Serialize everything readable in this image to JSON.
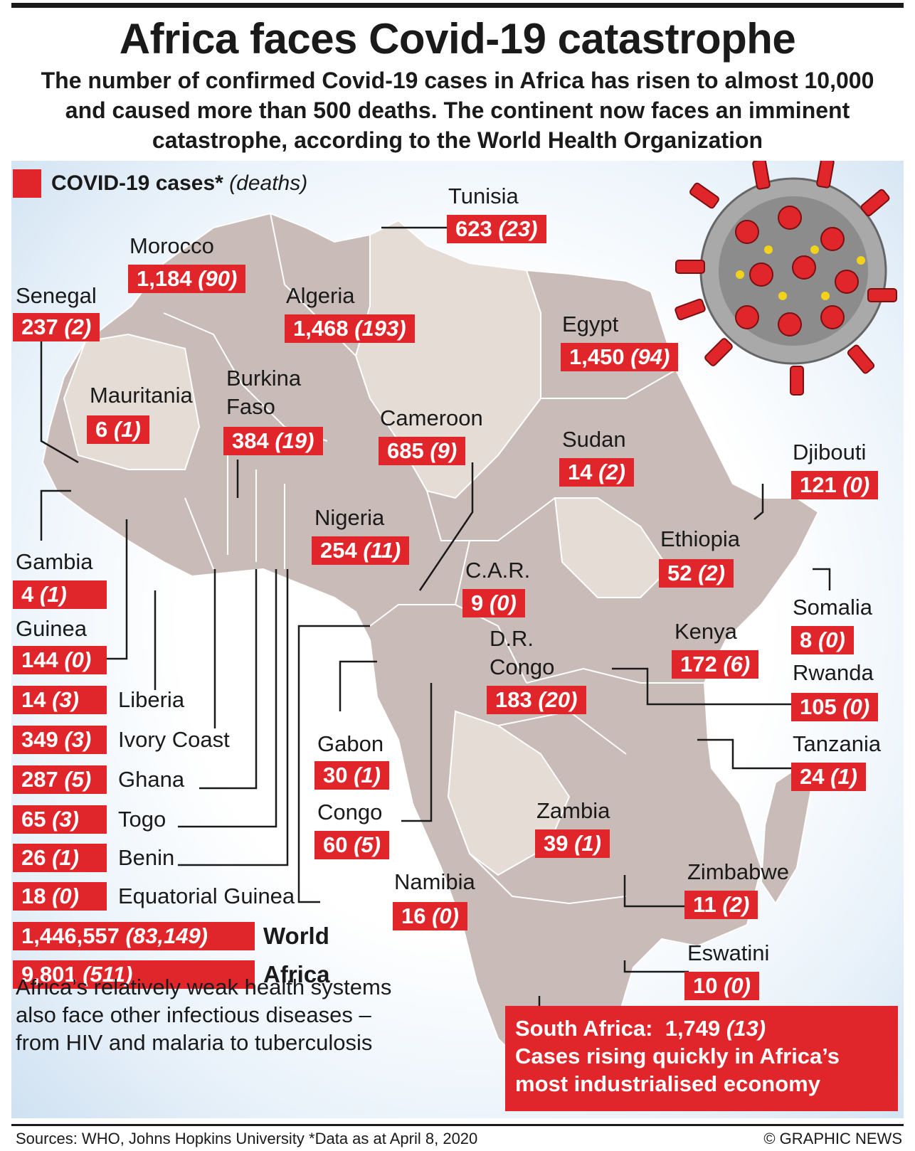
{
  "title": "Africa faces Covid-19 catastrophe",
  "subtitle": "The number of confirmed Covid-19 cases in Africa has risen to almost 10,000 and caused more than 500 deaths. The continent now faces an imminent catastrophe, according to the World Health Organization",
  "legend": {
    "cases_label": "COVID-19 cases*",
    "deaths_label": "(deaths)",
    "color": "#e0262b"
  },
  "countries": {
    "tunisia": {
      "name": "Tunisia",
      "cases": "623",
      "deaths": "(23)"
    },
    "morocco": {
      "name": "Morocco",
      "cases": "1,184",
      "deaths": "(90)"
    },
    "senegal": {
      "name": "Senegal",
      "cases": "237",
      "deaths": "(2)"
    },
    "algeria": {
      "name": "Algeria",
      "cases": "1,468",
      "deaths": "(193)"
    },
    "egypt": {
      "name": "Egypt",
      "cases": "1,450",
      "deaths": "(94)"
    },
    "mauritania": {
      "name": "Mauritania",
      "cases": "6",
      "deaths": "(1)"
    },
    "burkina": {
      "name_line1": "Burkina",
      "name_line2": "Faso",
      "cases": "384",
      "deaths": "(19)"
    },
    "cameroon": {
      "name": "Cameroon",
      "cases": "685",
      "deaths": "(9)"
    },
    "sudan": {
      "name": "Sudan",
      "cases": "14",
      "deaths": "(2)"
    },
    "djibouti": {
      "name": "Djibouti",
      "cases": "121",
      "deaths": "(0)"
    },
    "nigeria": {
      "name": "Nigeria",
      "cases": "254",
      "deaths": "(11)"
    },
    "ethiopia": {
      "name": "Ethiopia",
      "cases": "52",
      "deaths": "(2)"
    },
    "car": {
      "name": "C.A.R.",
      "cases": "9",
      "deaths": "(0)"
    },
    "somalia": {
      "name": "Somalia",
      "cases": "8",
      "deaths": "(0)"
    },
    "gambia": {
      "name": "Gambia",
      "cases": "4",
      "deaths": "(1)"
    },
    "guinea": {
      "name": "Guinea",
      "cases": "144",
      "deaths": "(0)"
    },
    "drc": {
      "name_line1": "D.R.",
      "name_line2": "Congo",
      "cases": "183",
      "deaths": "(20)"
    },
    "kenya": {
      "name": "Kenya",
      "cases": "172",
      "deaths": "(6)"
    },
    "rwanda": {
      "name": "Rwanda",
      "cases": "105",
      "deaths": "(0)"
    },
    "liberia": {
      "name": "Liberia",
      "cases": "14",
      "deaths": "(3)"
    },
    "ivory_coast": {
      "name": "Ivory Coast",
      "cases": "349",
      "deaths": "(3)"
    },
    "ghana": {
      "name": "Ghana",
      "cases": "287",
      "deaths": "(5)"
    },
    "togo": {
      "name": "Togo",
      "cases": "65",
      "deaths": "(3)"
    },
    "benin": {
      "name": "Benin",
      "cases": "26",
      "deaths": "(1)"
    },
    "eq_guinea": {
      "name": "Equatorial Guinea",
      "cases": "18",
      "deaths": "(0)"
    },
    "gabon": {
      "name": "Gabon",
      "cases": "30",
      "deaths": "(1)"
    },
    "congo": {
      "name": "Congo",
      "cases": "60",
      "deaths": "(5)"
    },
    "tanzania": {
      "name": "Tanzania",
      "cases": "24",
      "deaths": "(1)"
    },
    "zambia": {
      "name": "Zambia",
      "cases": "39",
      "deaths": "(1)"
    },
    "namibia": {
      "name": "Namibia",
      "cases": "16",
      "deaths": "(0)"
    },
    "zimbabwe": {
      "name": "Zimbabwe",
      "cases": "11",
      "deaths": "(2)"
    },
    "eswatini": {
      "name": "Eswatini",
      "cases": "10",
      "deaths": "(0)"
    }
  },
  "totals": {
    "world": {
      "label": "World",
      "cases": "1,446,557",
      "deaths": "(83,149)"
    },
    "africa": {
      "label": "Africa",
      "cases": "9,801",
      "deaths": "(511)"
    }
  },
  "note": "Africa’s relatively weak health systems also face other infectious diseases – from HIV and malaria to tuberculosis",
  "south_africa": {
    "label": "South Africa:",
    "cases": "1,749",
    "deaths": "(13)",
    "line2": "Cases rising quickly in Africa’s",
    "line3": "most industrialised economy"
  },
  "footer": {
    "sources": "Sources: WHO, Johns Hopkins University *Data as at April 8, 2020",
    "credit": "© GRAPHIC NEWS"
  }
}
